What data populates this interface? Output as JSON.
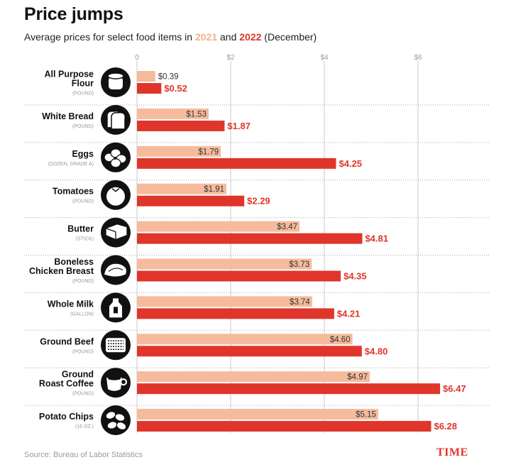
{
  "title": "Price jumps",
  "subtitle": {
    "prefix": "Average prices for select food items in ",
    "year1": "2021",
    "and": " and ",
    "year2": "2022",
    "suffix": " (December)"
  },
  "colors": {
    "y2021": "#f5bb9c",
    "y2022": "#e0352b",
    "grid": "#bbbbbb",
    "tick": "#999999"
  },
  "chart_data": {
    "type": "bar",
    "orientation": "horizontal",
    "x_ticks": [
      "0",
      "$2",
      "$4",
      "$6"
    ],
    "x_tick_values": [
      0,
      2,
      4,
      6
    ],
    "xlim": [
      0,
      6.6
    ],
    "grid": true,
    "legend": "in subtitle",
    "categories": [
      {
        "name": "All Purpose Flour",
        "unit": "(POUND)",
        "icon": "flour-sack-icon"
      },
      {
        "name": "White Bread",
        "unit": "(POUND)",
        "icon": "bread-icon"
      },
      {
        "name": "Eggs",
        "unit": "(DOZEN, GRADE A)",
        "icon": "eggs-icon"
      },
      {
        "name": "Tomatoes",
        "unit": "(POUND)",
        "icon": "tomato-icon"
      },
      {
        "name": "Butter",
        "unit": "(STICK)",
        "icon": "butter-icon"
      },
      {
        "name": "Boneless Chicken Breast",
        "unit": "(POUND)",
        "icon": "chicken-breast-icon"
      },
      {
        "name": "Whole Milk",
        "unit": "(GALLON)",
        "icon": "milk-jug-icon"
      },
      {
        "name": "Ground Beef",
        "unit": "(POUND)",
        "icon": "ground-beef-icon"
      },
      {
        "name": "Ground Roast Coffee",
        "unit": "(POUND)",
        "icon": "coffee-cup-icon"
      },
      {
        "name": "Potato Chips",
        "unit": "(16 OZ.)",
        "icon": "potato-chips-icon"
      }
    ],
    "series": [
      {
        "name": "2021",
        "values": [
          0.39,
          1.53,
          1.79,
          1.91,
          3.47,
          3.73,
          3.74,
          4.6,
          4.97,
          5.15
        ],
        "labels": [
          "$0.39",
          "$1.53",
          "$1.79",
          "$1.91",
          "$3.47",
          "$3.73",
          "$3.74",
          "$4.60",
          "$4.97",
          "$5.15"
        ]
      },
      {
        "name": "2022",
        "values": [
          0.52,
          1.87,
          4.25,
          2.29,
          4.81,
          4.35,
          4.21,
          4.8,
          6.47,
          6.28
        ],
        "labels": [
          "$0.52",
          "$1.87",
          "$4.25",
          "$2.29",
          "$4.81",
          "$4.35",
          "$4.21",
          "$4.80",
          "$6.47",
          "$6.28"
        ]
      }
    ]
  },
  "source": "Source: Bureau of Labor Statistics",
  "brand": "TIME"
}
